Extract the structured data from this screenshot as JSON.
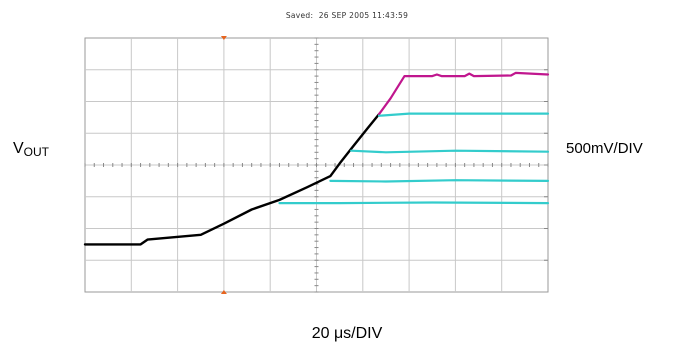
{
  "caption": {
    "saved_label": "Saved:",
    "saved_datetime": "26 SEP 2005  11:43:59"
  },
  "labels": {
    "left_main": "V",
    "left_sub": "OUT",
    "right": "500mV/DIV",
    "bottom": "20 μs/DIV"
  },
  "chart_data": {
    "type": "line",
    "grid": true,
    "x_divisions": 10,
    "y_divisions": 8,
    "x_unit_per_div": "20 μs",
    "y_unit_per_div": "500mV",
    "xlim": [
      0,
      10
    ],
    "ylim": [
      -4,
      4
    ],
    "trigger_marker_x": 3,
    "series": [
      {
        "color": "#000000",
        "points": [
          [
            0,
            -2.5
          ],
          [
            1.2,
            -2.5
          ],
          [
            1.35,
            -2.35
          ],
          [
            2.5,
            -2.2
          ],
          [
            3.0,
            -1.85
          ],
          [
            3.6,
            -1.4
          ],
          [
            4.2,
            -1.1
          ],
          [
            4.8,
            -0.7
          ],
          [
            5.3,
            -0.35
          ],
          [
            5.5,
            0.05
          ],
          [
            5.8,
            0.6
          ],
          [
            6.1,
            1.15
          ],
          [
            6.35,
            1.6
          ]
        ]
      },
      {
        "color": "#c0168e",
        "points": [
          [
            6.35,
            1.6
          ],
          [
            6.6,
            2.1
          ],
          [
            6.9,
            2.8
          ],
          [
            7.5,
            2.8
          ],
          [
            7.6,
            2.85
          ],
          [
            7.7,
            2.8
          ],
          [
            8.2,
            2.8
          ],
          [
            8.3,
            2.88
          ],
          [
            8.4,
            2.8
          ],
          [
            9.2,
            2.82
          ],
          [
            9.3,
            2.9
          ],
          [
            10,
            2.85
          ]
        ]
      },
      {
        "color": "#33cccc",
        "points": [
          [
            6.35,
            1.55
          ],
          [
            7.0,
            1.62
          ],
          [
            8.5,
            1.62
          ],
          [
            10,
            1.62
          ]
        ]
      },
      {
        "color": "#33cccc",
        "points": [
          [
            5.75,
            0.45
          ],
          [
            6.5,
            0.4
          ],
          [
            8.0,
            0.45
          ],
          [
            10,
            0.42
          ]
        ]
      },
      {
        "color": "#33cccc",
        "points": [
          [
            5.3,
            -0.5
          ],
          [
            6.5,
            -0.52
          ],
          [
            8.0,
            -0.48
          ],
          [
            10,
            -0.5
          ]
        ]
      },
      {
        "color": "#33cccc",
        "points": [
          [
            4.2,
            -1.2
          ],
          [
            5.5,
            -1.2
          ],
          [
            7.5,
            -1.18
          ],
          [
            10,
            -1.2
          ]
        ]
      }
    ]
  }
}
